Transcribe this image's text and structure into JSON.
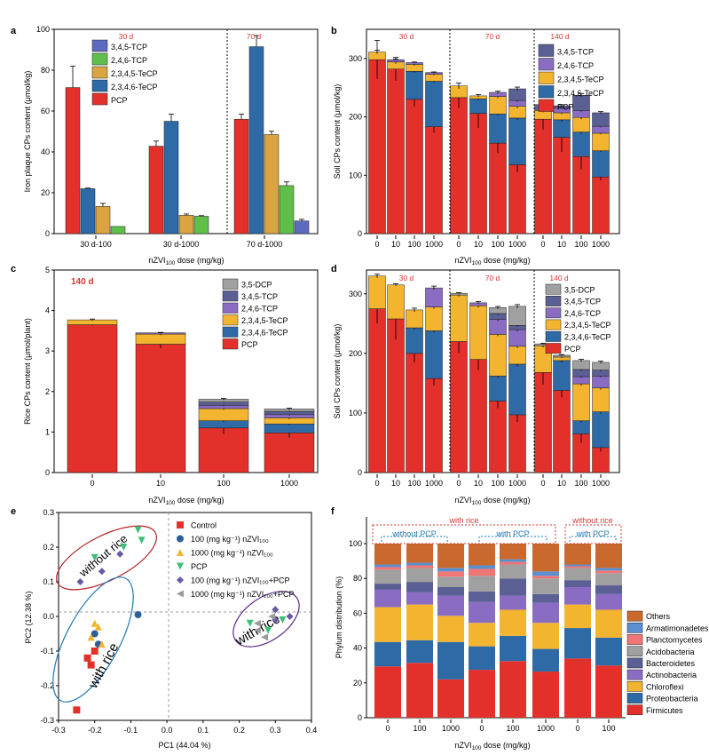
{
  "colors": {
    "PCP": "#e3302a",
    "2,3,4,6-TeCP": "#2d6aa6",
    "2,3,4,5-TeCP": "#f3b42f",
    "2,4,6-TCP": "#8b6cc3",
    "3,4,5-TCP": "#5a5f94",
    "3,5-DCP": "#a0a0a0",
    "aTeCP2345": "#d9a441",
    "aTCP246": "#5fbf4a",
    "aTCP345": "#5c6bc0",
    "annotation": "#d03a35",
    "ellipse_red": "#b8232a",
    "ellipse_blue": "#1f78b4",
    "ellipse_purple": "#5b2a86"
  },
  "panels": {
    "a": {
      "letter": "a"
    },
    "b": {
      "letter": "b"
    },
    "c": {
      "letter": "c"
    },
    "d": {
      "letter": "d"
    },
    "e": {
      "letter": "e"
    },
    "f": {
      "letter": "f"
    }
  },
  "chart_data": [
    {
      "id": "a",
      "type": "bar",
      "ylabel": "Iron plaque CPs content (μmol/kg)",
      "xlabel": "nZVI100 dose (mg/kg)",
      "ylim": [
        0,
        100
      ],
      "yticks": [
        0,
        20,
        40,
        60,
        80,
        100
      ],
      "categories": [
        "30 d-100",
        "30 d-1000",
        "70 d-1000"
      ],
      "annotations": [
        "30 d",
        "70 d"
      ],
      "legend": [
        "3,4,5-TCP",
        "2,4,6-TCP",
        "2,3,4,5-TeCP",
        "2,3,4,6-TeCP",
        "PCP"
      ],
      "series": [
        {
          "name": "PCP",
          "values": [
            71.5,
            42.8,
            56
          ],
          "err": [
            10.5,
            2.5,
            2.5
          ]
        },
        {
          "name": "2,3,4,6-TeCP",
          "values": [
            22,
            55,
            91.5
          ],
          "err": [
            0.3,
            3.5,
            5.5
          ]
        },
        {
          "name": "2,3,4,5-TeCP",
          "values": [
            13.3,
            9,
            48.5
          ],
          "err": [
            1.5,
            0.6,
            1.6
          ]
        },
        {
          "name": "2,4,6-TCP",
          "values": [
            3.5,
            8.5,
            23.5
          ],
          "err": [
            0,
            0.3,
            1.8
          ]
        },
        {
          "name": "3,4,5-TCP",
          "values": [
            0,
            0,
            6.2
          ],
          "err": [
            0,
            0,
            0.8
          ]
        }
      ]
    },
    {
      "id": "b",
      "type": "bar",
      "ylabel": "Soil CPs content (μmol/kg)",
      "xlabel": "nZVI100 dose (mg/kg)",
      "ylim": [
        0,
        350
      ],
      "yticks": [
        0,
        100,
        200,
        300
      ],
      "categories": [
        "0",
        "10",
        "100",
        "1000",
        "0",
        "10",
        "100",
        "1000",
        "0",
        "10",
        "100",
        "1000"
      ],
      "annotations": [
        "30 d",
        "70 d",
        "140 d"
      ],
      "legend": [
        "3,4,5-TCP",
        "2,4,6-TCP",
        "2,3,4,5-TeCP",
        "2,3,4,6-TeCP",
        "PCP"
      ],
      "series": [
        {
          "name": "PCP",
          "values": [
            298,
            282,
            230,
            183,
            233,
            206,
            155,
            118,
            196,
            165,
            132,
            97
          ],
          "err": [
            33,
            20,
            12,
            10,
            18,
            25,
            17,
            12,
            18,
            25,
            22,
            6
          ]
        },
        {
          "name": "2,3,4,6-TeCP",
          "values": [
            0,
            0,
            48,
            78,
            0,
            25,
            50,
            80,
            0,
            30,
            42,
            45
          ],
          "err": [
            0,
            0,
            2,
            2,
            0,
            3,
            2,
            3,
            0,
            3,
            3,
            2
          ]
        },
        {
          "name": "2,3,4,5-TeCP",
          "values": [
            13,
            12,
            12,
            12,
            20,
            5,
            30,
            20,
            15,
            12,
            25,
            30
          ],
          "err": [
            3,
            3,
            2,
            2,
            5,
            2,
            3,
            3,
            3,
            2,
            3,
            2
          ]
        },
        {
          "name": "2,4,6-TCP",
          "values": [
            0,
            4,
            3,
            3,
            0,
            0,
            7,
            10,
            0,
            8,
            12,
            12
          ],
          "err": [
            0,
            1,
            1,
            1,
            0,
            0,
            2,
            2,
            0,
            2,
            2,
            2
          ]
        },
        {
          "name": "3,4,5-TCP",
          "values": [
            0,
            0,
            0,
            0,
            0,
            0,
            0,
            20,
            10,
            4,
            26,
            23
          ],
          "err": [
            0,
            0,
            0,
            0,
            0,
            0,
            0,
            3,
            2,
            2,
            3,
            2
          ]
        }
      ]
    },
    {
      "id": "c",
      "type": "bar",
      "ylabel": "Rice CPs content (μmol/plant)",
      "xlabel": "nZVI100 dose (mg/kg)",
      "ylim": [
        0,
        5
      ],
      "yticks": [
        0,
        1,
        2,
        3,
        4,
        5
      ],
      "categories": [
        "0",
        "10",
        "100",
        "1000"
      ],
      "annotations": [
        "140 d"
      ],
      "legend": [
        "3,5-DCP",
        "3,4,5-TCP",
        "2,4,6-TCP",
        "2,3,4,5-TeCP",
        "2,3,4,6-TeCP",
        "PCP"
      ],
      "series": [
        {
          "name": "PCP",
          "values": [
            3.65,
            3.17,
            1.1,
            0.98
          ],
          "err": [
            0.02,
            0.1,
            0.15,
            0.12
          ]
        },
        {
          "name": "2,3,4,6-TeCP",
          "values": [
            0,
            0,
            0.18,
            0.22
          ],
          "err": [
            0,
            0,
            0.03,
            0.03
          ]
        },
        {
          "name": "2,3,4,5-TeCP",
          "values": [
            0.12,
            0.25,
            0.3,
            0.15
          ],
          "err": [
            0.02,
            0.03,
            0.03,
            0.03
          ]
        },
        {
          "name": "2,4,6-TCP",
          "values": [
            0,
            0.03,
            0.08,
            0.08
          ],
          "err": [
            0,
            0.01,
            0.02,
            0.02
          ]
        },
        {
          "name": "3,4,5-TCP",
          "values": [
            0,
            0,
            0.08,
            0.08
          ],
          "err": [
            0,
            0,
            0.02,
            0.02
          ]
        },
        {
          "name": "3,5-DCP",
          "values": [
            0,
            0,
            0.07,
            0.06
          ],
          "err": [
            0,
            0,
            0.02,
            0.02
          ]
        }
      ]
    },
    {
      "id": "d",
      "type": "bar",
      "ylabel": "Soil CPs content (μmol/kg)",
      "xlabel": "nZVI100 dose (mg/kg)",
      "ylim": [
        0,
        340
      ],
      "yticks": [
        0,
        100,
        200,
        300
      ],
      "categories": [
        "0",
        "10",
        "100",
        "1000",
        "0",
        "10",
        "100",
        "1000",
        "0",
        "10",
        "100",
        "1000"
      ],
      "annotations": [
        "30 d",
        "70 d",
        "140 d"
      ],
      "legend": [
        "3,5-DCP",
        "3,4,5-TCP",
        "2,4,6-TCP",
        "2,3,4,5-TeCP",
        "2,3,4,6-TeCP",
        "PCP"
      ],
      "series": [
        {
          "name": "PCP",
          "values": [
            275,
            258,
            200,
            158,
            220,
            190,
            120,
            97,
            168,
            138,
            65,
            42
          ],
          "err": [
            25,
            35,
            15,
            12,
            20,
            18,
            12,
            12,
            20,
            12,
            15,
            7
          ]
        },
        {
          "name": "2,3,4,6-TeCP",
          "values": [
            0,
            0,
            43,
            80,
            0,
            0,
            42,
            85,
            0,
            50,
            22,
            60
          ],
          "err": [
            0,
            0,
            3,
            3,
            0,
            0,
            3,
            4,
            0,
            3,
            3,
            3
          ]
        },
        {
          "name": "2,3,4,5-TeCP",
          "values": [
            55,
            57,
            30,
            40,
            78,
            90,
            70,
            30,
            45,
            6,
            62,
            40
          ],
          "err": [
            3,
            2,
            3,
            3,
            2,
            3,
            3,
            3,
            3,
            2,
            3,
            3
          ]
        },
        {
          "name": "2,4,6-TCP",
          "values": [
            0,
            0,
            0,
            32,
            0,
            5,
            25,
            28,
            0,
            0,
            12,
            20
          ],
          "err": [
            0,
            0,
            0,
            3,
            0,
            2,
            3,
            3,
            0,
            0,
            2,
            2
          ]
        },
        {
          "name": "3,4,5-TCP",
          "values": [
            0,
            0,
            0,
            0,
            0,
            0,
            10,
            7,
            0,
            0,
            12,
            10
          ],
          "err": [
            0,
            0,
            0,
            0,
            0,
            0,
            2,
            2,
            0,
            0,
            2,
            2
          ]
        },
        {
          "name": "3,5-DCP",
          "values": [
            0,
            0,
            0,
            0,
            3,
            0,
            10,
            32,
            3,
            3,
            15,
            13
          ],
          "err": [
            0,
            0,
            0,
            0,
            1,
            0,
            2,
            3,
            1,
            1,
            2,
            2
          ]
        }
      ]
    },
    {
      "id": "e",
      "type": "scatter",
      "xlabel": "PC1 (44.04 %)",
      "ylabel": "PC2 (12.38 %)",
      "xlim": [
        -0.3,
        0.4
      ],
      "ylim": [
        -0.3,
        0.3
      ],
      "xticks": [
        -0.3,
        -0.2,
        -0.1,
        0.0,
        0.1,
        0.2,
        0.3,
        0.4
      ],
      "yticks": [
        -0.3,
        -0.2,
        -0.1,
        0.0,
        0.1,
        0.2,
        0.3
      ],
      "annotations": [
        "without rice",
        "with rice",
        "with rice"
      ],
      "series": [
        {
          "name": "Control",
          "shape": "square",
          "color": "#e3302a",
          "points": [
            [
              -0.25,
              -0.27
            ],
            [
              -0.22,
              -0.12
            ],
            [
              -0.2,
              -0.1
            ],
            [
              -0.21,
              -0.14
            ]
          ]
        },
        {
          "name": "100 (mg kg⁻¹) nZVI₁₀₀",
          "shape": "circle",
          "color": "#2d5f9a",
          "points": [
            [
              -0.08,
              0.005
            ],
            [
              -0.19,
              -0.08
            ],
            [
              -0.2,
              -0.05
            ]
          ]
        },
        {
          "name": "1000 (mg kg⁻¹) nZVI₁₀₀",
          "shape": "triangle",
          "color": "#f3b42f",
          "points": [
            [
              -0.19,
              -0.03
            ],
            [
              -0.21,
              -0.06
            ],
            [
              -0.18,
              -0.08
            ],
            [
              -0.2,
              -0.02
            ]
          ]
        },
        {
          "name": "PCP",
          "shape": "triangle-down",
          "color": "#3cbf76",
          "points": [
            [
              -0.08,
              0.25
            ],
            [
              -0.07,
              0.22
            ],
            [
              -0.12,
              0.2
            ],
            [
              -0.2,
              0.17
            ],
            [
              0.23,
              -0.02
            ],
            [
              0.28,
              -0.04
            ],
            [
              0.32,
              -0.01
            ]
          ]
        },
        {
          "name": "100 (mg kg⁻¹) nZVI₁₀₀+PCP",
          "shape": "diamond",
          "color": "#6a58a5",
          "points": [
            [
              -0.24,
              0.1
            ],
            [
              -0.18,
              0.13
            ],
            [
              -0.13,
              0.18
            ],
            [
              0.3,
              0.02
            ],
            [
              0.3,
              -0.01
            ],
            [
              0.34,
              0.0
            ]
          ]
        },
        {
          "name": "1000 (mg kg⁻¹) nZVI₁₀₀+PCP",
          "shape": "triangle-left",
          "color": "#9a9a9a",
          "points": [
            [
              0.29,
              0.0
            ],
            [
              0.25,
              -0.04
            ],
            [
              0.27,
              -0.06
            ],
            [
              0.25,
              -0.02
            ]
          ]
        }
      ]
    },
    {
      "id": "f",
      "type": "bar",
      "ylabel": "Phylum distribution (%)",
      "xlabel": "nZVI100 dose (mg/kg)",
      "ylim": [
        0,
        100
      ],
      "yticks": [
        0,
        20,
        40,
        60,
        80,
        100
      ],
      "categories": [
        "0",
        "100",
        "1000",
        "0",
        "100",
        "1000",
        "0",
        "100"
      ],
      "annotations": [
        "with rice",
        "without rice",
        "without PCP",
        "with PCP",
        "with PCP"
      ],
      "legend": [
        "Others",
        "Armatimonadetes",
        "Planctomycetes",
        "Acidobacteria",
        "Bacteroidetes",
        "Actinobacteria",
        "Chloroflexi",
        "Proteobacteria",
        "Firmicutes"
      ],
      "series": [
        {
          "name": "Firmicutes",
          "color": "#e3302a",
          "values": [
            29.5,
            31.5,
            22,
            27.5,
            32.5,
            26.5,
            34,
            30
          ]
        },
        {
          "name": "Proteobacteria",
          "color": "#2d6aa6",
          "values": [
            14,
            13,
            21.5,
            13.5,
            14.5,
            13,
            17.5,
            16
          ]
        },
        {
          "name": "Chloroflexi",
          "color": "#f3b42f",
          "values": [
            20,
            20.5,
            15,
            13.5,
            15,
            15,
            13.5,
            16
          ]
        },
        {
          "name": "Actinobacteria",
          "color": "#8b6cc3",
          "values": [
            10,
            7,
            11.5,
            12,
            8,
            11.5,
            10,
            9
          ]
        },
        {
          "name": "Bacteroidetes",
          "color": "#5a5f94",
          "values": [
            3.5,
            6,
            5,
            6,
            10,
            5,
            4,
            5
          ]
        },
        {
          "name": "Acidobacteria",
          "color": "#a0a0a0",
          "values": [
            8,
            8,
            6,
            9,
            8,
            9,
            7,
            7
          ]
        },
        {
          "name": "Planctomycetes",
          "color": "#f07676",
          "values": [
            1.5,
            1.5,
            3,
            4,
            1.5,
            1.5,
            1,
            1.5
          ]
        },
        {
          "name": "Armatimonadetes",
          "color": "#5a8fd0",
          "values": [
            1.5,
            1.5,
            2,
            2,
            1.5,
            2.5,
            1,
            1.5
          ]
        },
        {
          "name": "Others",
          "color": "#c9692e",
          "values": [
            12,
            11,
            14,
            12.5,
            9,
            16,
            12,
            14
          ]
        }
      ]
    }
  ]
}
